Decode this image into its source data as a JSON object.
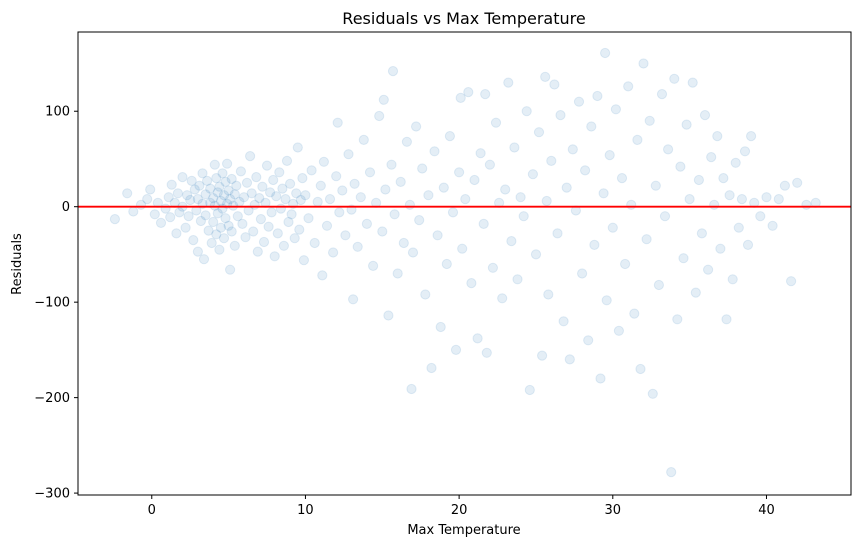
{
  "chart_data": {
    "type": "scatter",
    "title": "Residuals vs Max Temperature",
    "xlabel": "Max Temperature",
    "ylabel": "Residuals",
    "xlim": [
      -4.8,
      45.5
    ],
    "ylim": [
      -302,
      183
    ],
    "xticks": [
      0,
      10,
      20,
      30,
      40
    ],
    "yticks": [
      -300,
      -200,
      -100,
      0,
      100
    ],
    "xtick_labels": [
      "0",
      "10",
      "20",
      "30",
      "40"
    ],
    "ytick_labels": [
      "−300",
      "−200",
      "−100",
      "0",
      "100"
    ],
    "grid": false,
    "point_color": "#1f77b4",
    "point_alpha": 0.12,
    "reference_line": {
      "y": 0,
      "color": "#ff0000"
    },
    "series": [
      {
        "values": [
          [
            -2.4,
            -13
          ],
          [
            -1.6,
            14
          ],
          [
            -1.2,
            -5
          ],
          [
            -0.7,
            2
          ],
          [
            -0.3,
            8
          ],
          [
            -0.1,
            18
          ],
          [
            0.2,
            -8
          ],
          [
            0.4,
            4
          ],
          [
            0.6,
            -17
          ],
          [
            0.9,
            -2
          ],
          [
            1.1,
            10
          ],
          [
            1.2,
            -11
          ],
          [
            1.3,
            23
          ],
          [
            1.5,
            4
          ],
          [
            1.6,
            -28
          ],
          [
            1.7,
            14
          ],
          [
            1.8,
            -6
          ],
          [
            2.0,
            31
          ],
          [
            2.0,
            0
          ],
          [
            2.2,
            -22
          ],
          [
            2.3,
            12
          ],
          [
            2.4,
            -10
          ],
          [
            2.5,
            7
          ],
          [
            2.6,
            27
          ],
          [
            2.7,
            -35
          ],
          [
            2.8,
            18
          ],
          [
            2.9,
            -4
          ],
          [
            3.0,
            8
          ],
          [
            3.0,
            -47
          ],
          [
            3.1,
            22
          ],
          [
            3.2,
            -15
          ],
          [
            3.3,
            3
          ],
          [
            3.3,
            35
          ],
          [
            3.4,
            -55
          ],
          [
            3.5,
            13
          ],
          [
            3.5,
            -9
          ],
          [
            3.6,
            27
          ],
          [
            3.7,
            -25
          ],
          [
            3.8,
            4
          ],
          [
            3.8,
            19
          ],
          [
            3.9,
            -38
          ],
          [
            4.0,
            9
          ],
          [
            4.0,
            -16
          ],
          [
            4.1,
            44
          ],
          [
            4.1,
            1
          ],
          [
            4.2,
            30
          ],
          [
            4.2,
            -29
          ],
          [
            4.3,
            15
          ],
          [
            4.3,
            -7
          ],
          [
            4.4,
            21
          ],
          [
            4.4,
            -45
          ],
          [
            4.5,
            6
          ],
          [
            4.5,
            -22
          ],
          [
            4.6,
            35
          ],
          [
            4.6,
            -2
          ],
          [
            4.7,
            12
          ],
          [
            4.7,
            -33
          ],
          [
            4.8,
            26
          ],
          [
            4.8,
            -12
          ],
          [
            4.9,
            45
          ],
          [
            4.9,
            3
          ],
          [
            5.0,
            -20
          ],
          [
            5.0,
            17
          ],
          [
            5.1,
            -66
          ],
          [
            5.1,
            8
          ],
          [
            5.2,
            29
          ],
          [
            5.2,
            -26
          ],
          [
            5.3,
            1
          ],
          [
            5.4,
            13
          ],
          [
            5.4,
            -41
          ],
          [
            5.5,
            22
          ],
          [
            5.6,
            -10
          ],
          [
            5.7,
            5
          ],
          [
            5.8,
            37
          ],
          [
            5.9,
            -18
          ],
          [
            6.0,
            10
          ],
          [
            6.1,
            -32
          ],
          [
            6.2,
            25
          ],
          [
            6.3,
            -4
          ],
          [
            6.4,
            53
          ],
          [
            6.5,
            14
          ],
          [
            6.6,
            -26
          ],
          [
            6.7,
            2
          ],
          [
            6.8,
            31
          ],
          [
            6.9,
            -47
          ],
          [
            7.0,
            9
          ],
          [
            7.1,
            -13
          ],
          [
            7.2,
            21
          ],
          [
            7.3,
            -37
          ],
          [
            7.4,
            4
          ],
          [
            7.5,
            43
          ],
          [
            7.6,
            -21
          ],
          [
            7.7,
            15
          ],
          [
            7.8,
            -6
          ],
          [
            7.9,
            28
          ],
          [
            8.0,
            -52
          ],
          [
            8.1,
            11
          ],
          [
            8.2,
            -28
          ],
          [
            8.3,
            36
          ],
          [
            8.4,
            -2
          ],
          [
            8.5,
            19
          ],
          [
            8.6,
            -41
          ],
          [
            8.7,
            8
          ],
          [
            8.8,
            48
          ],
          [
            8.9,
            -16
          ],
          [
            9.0,
            24
          ],
          [
            9.1,
            -8
          ],
          [
            9.2,
            3
          ],
          [
            9.3,
            -33
          ],
          [
            9.4,
            14
          ],
          [
            9.5,
            62
          ],
          [
            9.6,
            -24
          ],
          [
            9.7,
            7
          ],
          [
            9.8,
            30
          ],
          [
            9.9,
            -56
          ],
          [
            10.0,
            12
          ],
          [
            10.2,
            -12
          ],
          [
            10.4,
            38
          ],
          [
            10.6,
            -38
          ],
          [
            10.8,
            5
          ],
          [
            11.0,
            22
          ],
          [
            11.1,
            -72
          ],
          [
            11.2,
            47
          ],
          [
            11.4,
            -20
          ],
          [
            11.6,
            8
          ],
          [
            11.8,
            -48
          ],
          [
            12.0,
            32
          ],
          [
            12.1,
            88
          ],
          [
            12.2,
            -6
          ],
          [
            12.4,
            17
          ],
          [
            12.6,
            -30
          ],
          [
            12.8,
            55
          ],
          [
            13.0,
            -3
          ],
          [
            13.1,
            -97
          ],
          [
            13.2,
            24
          ],
          [
            13.4,
            -42
          ],
          [
            13.6,
            10
          ],
          [
            13.8,
            70
          ],
          [
            14.0,
            -18
          ],
          [
            14.2,
            36
          ],
          [
            14.4,
            -62
          ],
          [
            14.6,
            4
          ],
          [
            14.8,
            95
          ],
          [
            15.0,
            -26
          ],
          [
            15.1,
            112
          ],
          [
            15.2,
            18
          ],
          [
            15.4,
            -114
          ],
          [
            15.6,
            44
          ],
          [
            15.7,
            142
          ],
          [
            15.8,
            -8
          ],
          [
            16.0,
            -70
          ],
          [
            16.2,
            26
          ],
          [
            16.4,
            -38
          ],
          [
            16.6,
            68
          ],
          [
            16.8,
            2
          ],
          [
            16.9,
            -191
          ],
          [
            17.0,
            -48
          ],
          [
            17.2,
            84
          ],
          [
            17.4,
            -14
          ],
          [
            17.6,
            40
          ],
          [
            17.8,
            -92
          ],
          [
            18.0,
            12
          ],
          [
            18.2,
            -169
          ],
          [
            18.4,
            58
          ],
          [
            18.6,
            -30
          ],
          [
            18.8,
            -126
          ],
          [
            19.0,
            20
          ],
          [
            19.2,
            -60
          ],
          [
            19.4,
            74
          ],
          [
            19.6,
            -6
          ],
          [
            19.8,
            -150
          ],
          [
            20.0,
            36
          ],
          [
            20.1,
            114
          ],
          [
            20.2,
            -44
          ],
          [
            20.4,
            8
          ],
          [
            20.6,
            120
          ],
          [
            20.8,
            -80
          ],
          [
            21.0,
            28
          ],
          [
            21.2,
            -138
          ],
          [
            21.4,
            56
          ],
          [
            21.6,
            -18
          ],
          [
            21.7,
            118
          ],
          [
            21.8,
            -153
          ],
          [
            22.0,
            44
          ],
          [
            22.2,
            -64
          ],
          [
            22.4,
            88
          ],
          [
            22.6,
            4
          ],
          [
            22.8,
            -96
          ],
          [
            23.0,
            18
          ],
          [
            23.2,
            130
          ],
          [
            23.4,
            -36
          ],
          [
            23.6,
            62
          ],
          [
            23.8,
            -76
          ],
          [
            24.0,
            10
          ],
          [
            24.2,
            -10
          ],
          [
            24.4,
            100
          ],
          [
            24.6,
            -192
          ],
          [
            24.8,
            34
          ],
          [
            25.0,
            -50
          ],
          [
            25.2,
            78
          ],
          [
            25.4,
            -156
          ],
          [
            25.6,
            136
          ],
          [
            25.7,
            6
          ],
          [
            25.8,
            -92
          ],
          [
            26.0,
            48
          ],
          [
            26.2,
            128
          ],
          [
            26.4,
            -28
          ],
          [
            26.6,
            96
          ],
          [
            26.8,
            -120
          ],
          [
            27.0,
            20
          ],
          [
            27.2,
            -160
          ],
          [
            27.4,
            60
          ],
          [
            27.6,
            -4
          ],
          [
            27.8,
            110
          ],
          [
            28.0,
            -70
          ],
          [
            28.2,
            38
          ],
          [
            28.4,
            -140
          ],
          [
            28.6,
            84
          ],
          [
            28.8,
            -40
          ],
          [
            29.0,
            116
          ],
          [
            29.2,
            -180
          ],
          [
            29.4,
            14
          ],
          [
            29.5,
            161
          ],
          [
            29.6,
            -98
          ],
          [
            29.8,
            54
          ],
          [
            30.0,
            -22
          ],
          [
            30.2,
            102
          ],
          [
            30.4,
            -130
          ],
          [
            30.6,
            30
          ],
          [
            30.8,
            -60
          ],
          [
            31.0,
            126
          ],
          [
            31.2,
            2
          ],
          [
            31.4,
            -112
          ],
          [
            31.6,
            70
          ],
          [
            31.8,
            -170
          ],
          [
            32.0,
            150
          ],
          [
            32.2,
            -34
          ],
          [
            32.4,
            90
          ],
          [
            32.6,
            -196
          ],
          [
            32.8,
            22
          ],
          [
            33.0,
            -82
          ],
          [
            33.2,
            118
          ],
          [
            33.4,
            -10
          ],
          [
            33.6,
            60
          ],
          [
            33.8,
            -278
          ],
          [
            34.0,
            134
          ],
          [
            34.2,
            -118
          ],
          [
            34.4,
            42
          ],
          [
            34.6,
            -54
          ],
          [
            34.8,
            86
          ],
          [
            35.0,
            8
          ],
          [
            35.2,
            130
          ],
          [
            35.4,
            -90
          ],
          [
            35.6,
            28
          ],
          [
            35.8,
            -28
          ],
          [
            36.0,
            96
          ],
          [
            36.2,
            -66
          ],
          [
            36.4,
            52
          ],
          [
            36.6,
            2
          ],
          [
            36.8,
            74
          ],
          [
            37.0,
            -44
          ],
          [
            37.2,
            30
          ],
          [
            37.4,
            -118
          ],
          [
            37.6,
            12
          ],
          [
            37.8,
            -76
          ],
          [
            38.0,
            46
          ],
          [
            38.2,
            -22
          ],
          [
            38.4,
            8
          ],
          [
            38.6,
            58
          ],
          [
            38.8,
            -40
          ],
          [
            39.0,
            74
          ],
          [
            39.2,
            4
          ],
          [
            39.6,
            -10
          ],
          [
            40.0,
            10
          ],
          [
            40.4,
            -20
          ],
          [
            40.8,
            8
          ],
          [
            41.2,
            22
          ],
          [
            41.6,
            -78
          ],
          [
            42.0,
            25
          ],
          [
            42.6,
            2
          ],
          [
            43.2,
            4
          ]
        ]
      }
    ]
  }
}
